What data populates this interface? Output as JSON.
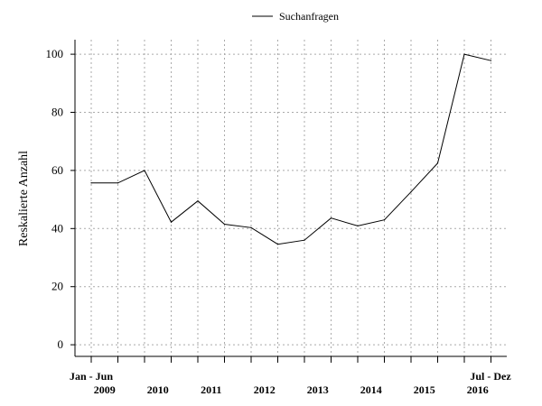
{
  "chart_data": {
    "type": "line",
    "title": "",
    "xlabel": "",
    "ylabel": "Reskalierte Anzahl",
    "ylim": [
      -4,
      105
    ],
    "yticks": [
      0,
      20,
      40,
      60,
      80,
      100
    ],
    "grid": true,
    "legend_position": "top-center",
    "period_start_label": "Jan - Jun",
    "period_end_label": "Jul - Dez",
    "year_labels": [
      "2009",
      "2010",
      "2011",
      "2012",
      "2013",
      "2014",
      "2015",
      "2016"
    ],
    "series": [
      {
        "name": "Suchanfragen",
        "color": "#000000",
        "values": [
          55.7,
          55.7,
          60,
          42.2,
          49.5,
          41.5,
          40.3,
          34.6,
          36,
          43.6,
          40.9,
          43,
          52.6,
          62.5,
          100,
          97.8
        ]
      }
    ]
  }
}
